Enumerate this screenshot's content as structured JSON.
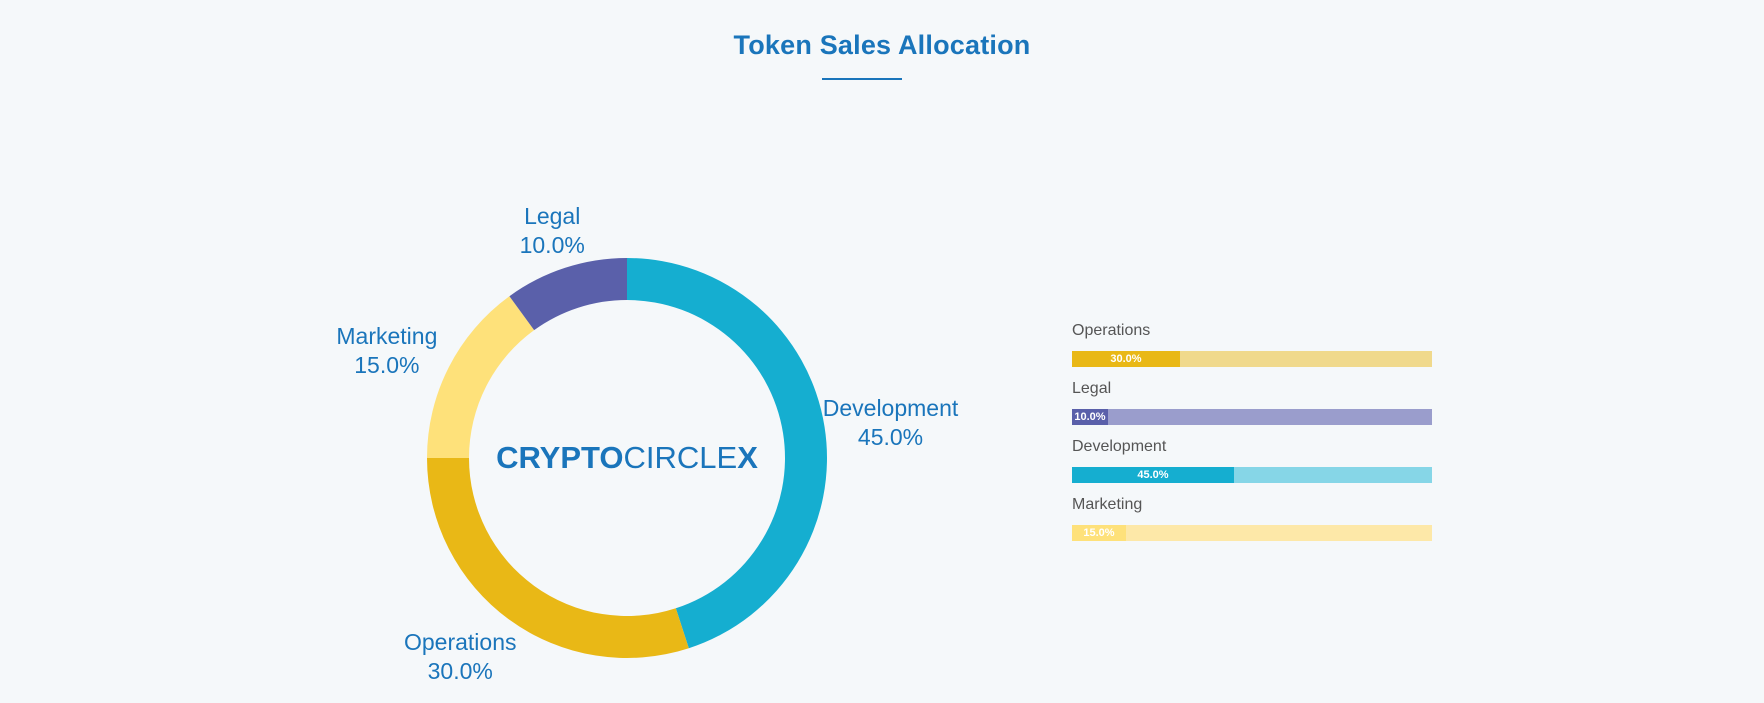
{
  "header": {
    "title": "Token Sales Allocation",
    "title_color": "#1a75bb",
    "underline_color": "#1a75bb"
  },
  "logo": {
    "text_bold": "CRYPTO",
    "text_light": "CIRCLE",
    "text_x": "X",
    "color": "#1a75bb"
  },
  "chart_data": [
    {
      "type": "pie",
      "variant": "donut",
      "label_color": "#1a75bb",
      "categories": [
        "Development",
        "Operations",
        "Marketing",
        "Legal"
      ],
      "values": [
        45.0,
        30.0,
        15.0,
        10.0
      ],
      "value_labels": [
        "45.0%",
        "30.0%",
        "15.0%",
        "10.0%"
      ],
      "colors": [
        "#15aed0",
        "#e9b816",
        "#fee17a",
        "#5a60aa"
      ],
      "start_angle_deg": 0,
      "direction": "clockwise"
    },
    {
      "type": "bar",
      "orientation": "horizontal",
      "categories": [
        "Operations",
        "Legal",
        "Development",
        "Marketing"
      ],
      "values": [
        30.0,
        10.0,
        45.0,
        15.0
      ],
      "value_labels": [
        "30.0%",
        "10.0%",
        "45.0%",
        "15.0%"
      ],
      "xlim": [
        0,
        100
      ],
      "fill_colors": [
        "#e9b816",
        "#5a60aa",
        "#15aed0",
        "#fee17a"
      ],
      "track_colors": [
        "#f0d98c",
        "#9a9dcc",
        "#86d6e7",
        "#fde8a8"
      ]
    }
  ]
}
